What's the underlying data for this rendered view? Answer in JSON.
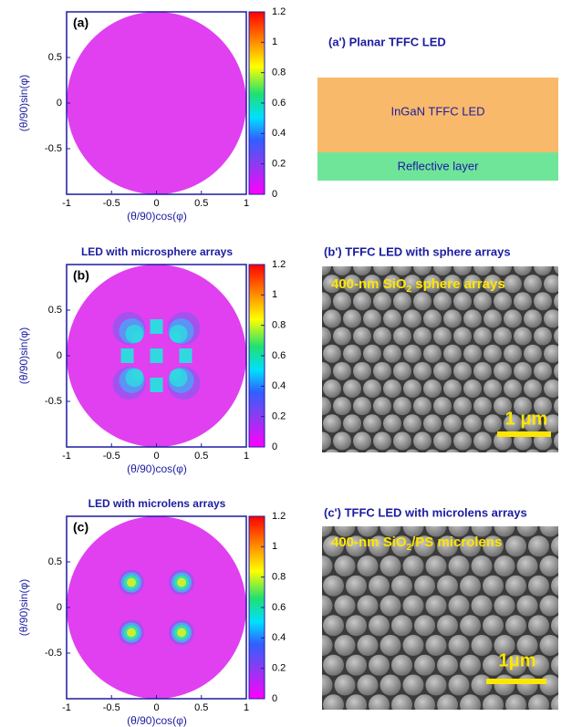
{
  "panels": [
    {
      "label": "(a)",
      "xlabel": "(θ/90)cos(φ)",
      "ylabel": "(θ/90)sin(φ)",
      "xlim": [
        -1,
        1
      ],
      "ylim": [
        -1,
        1
      ],
      "xticks": [
        -1,
        -0.5,
        0,
        0.5,
        1
      ],
      "yticks": [
        -0.5,
        0,
        0.5
      ],
      "colorbar_ticks": [
        0,
        0.2,
        0.4,
        0.6,
        0.8,
        1,
        1.2
      ]
    },
    {
      "title": "LED with microsphere arrays",
      "label": "(b)",
      "xlabel": "(θ/90)cos(φ)",
      "ylabel": "(θ/90)sin(φ)",
      "xlim": [
        -1,
        1
      ],
      "ylim": [
        -1,
        1
      ],
      "xticks": [
        -1,
        -0.5,
        0,
        0.5,
        1
      ],
      "yticks": [
        -0.5,
        0,
        0.5
      ],
      "colorbar_ticks": [
        0,
        0.2,
        0.4,
        0.6,
        0.8,
        1,
        1.2
      ]
    },
    {
      "title": "LED with microlens arrays",
      "label": "(c)",
      "xlabel": "(θ/90)cos(φ)",
      "ylabel": "(θ/90)sin(φ)",
      "xlim": [
        -1,
        1
      ],
      "ylim": [
        -1,
        1
      ],
      "xticks": [
        -1,
        -0.5,
        0,
        0.5,
        1
      ],
      "yticks": [
        -0.5,
        0,
        0.5
      ],
      "colorbar_ticks": [
        0,
        0.2,
        0.4,
        0.6,
        0.8,
        1,
        1.2
      ]
    }
  ],
  "schematic": {
    "title": "(a') Planar TFFC LED",
    "layers": [
      "InGaN TFFC LED",
      "Reflective layer"
    ]
  },
  "images": [
    {
      "title": "(b') TFFC LED with sphere arrays",
      "caption": [
        "400-nm SiO",
        "2",
        " sphere arrays"
      ],
      "scale_bar": "1 μm"
    },
    {
      "title": "(c') TFFC LED with microlens arrays",
      "caption": [
        "400-nm SiO",
        "2",
        "/PS microlens"
      ],
      "scale_bar": "1μm"
    }
  ]
}
